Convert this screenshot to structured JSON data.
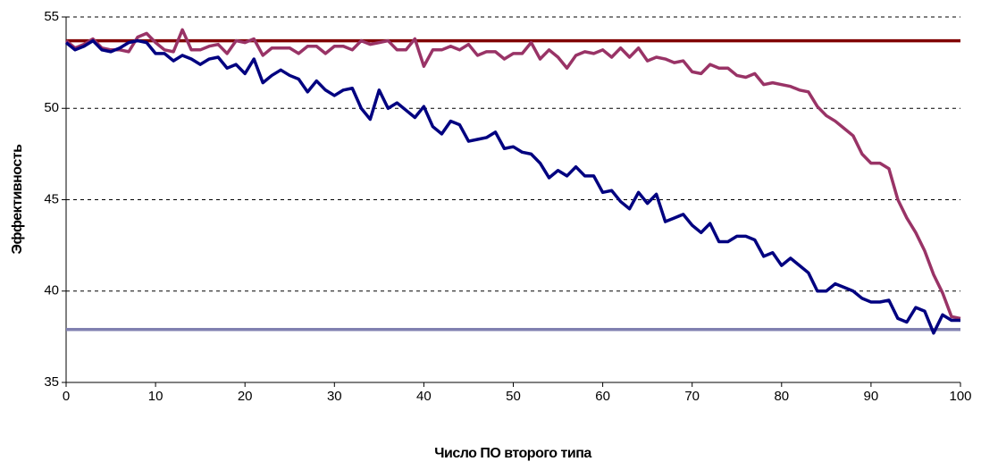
{
  "chart_data": {
    "type": "line",
    "x_label": "Число ПО второго типа",
    "y_label": "Эффективность",
    "x": [
      0,
      1,
      2,
      3,
      4,
      5,
      6,
      7,
      8,
      9,
      10,
      11,
      12,
      13,
      14,
      15,
      16,
      17,
      18,
      19,
      20,
      21,
      22,
      23,
      24,
      25,
      26,
      27,
      28,
      29,
      30,
      31,
      32,
      33,
      34,
      35,
      36,
      37,
      38,
      39,
      40,
      41,
      42,
      43,
      44,
      45,
      46,
      47,
      48,
      49,
      50,
      51,
      52,
      53,
      54,
      55,
      56,
      57,
      58,
      59,
      60,
      61,
      62,
      63,
      64,
      65,
      66,
      67,
      68,
      69,
      70,
      71,
      72,
      73,
      74,
      75,
      76,
      77,
      78,
      79,
      80,
      81,
      82,
      83,
      84,
      85,
      86,
      87,
      88,
      89,
      90,
      91,
      92,
      93,
      94,
      95,
      96,
      97,
      98,
      99,
      100
    ],
    "series": [
      {
        "x": [
          0,
          100
        ],
        "values": [
          53.7,
          53.7
        ],
        "color": "#800000"
      },
      {
        "x": [
          0,
          100
        ],
        "values": [
          37.9,
          37.9
        ],
        "color": "#8080b0"
      },
      {
        "color": "#993366",
        "values": [
          53.7,
          53.3,
          53.5,
          53.8,
          53.3,
          53.2,
          53.2,
          53.1,
          53.9,
          54.1,
          53.6,
          53.2,
          53.1,
          54.3,
          53.2,
          53.2,
          53.4,
          53.5,
          53.0,
          53.7,
          53.6,
          53.8,
          52.9,
          53.3,
          53.3,
          53.3,
          53.0,
          53.4,
          53.4,
          53.0,
          53.4,
          53.4,
          53.2,
          53.7,
          53.5,
          53.6,
          53.7,
          53.2,
          53.2,
          53.8,
          52.3,
          53.2,
          53.2,
          53.4,
          53.2,
          53.5,
          52.9,
          53.1,
          53.1,
          52.7,
          53.0,
          53.0,
          53.6,
          52.7,
          53.2,
          52.8,
          52.2,
          52.9,
          53.1,
          53.0,
          53.2,
          52.8,
          53.3,
          52.8,
          53.3,
          52.6,
          52.8,
          52.7,
          52.5,
          52.6,
          52.0,
          51.9,
          52.4,
          52.2,
          52.2,
          51.8,
          51.7,
          51.9,
          51.3,
          51.4,
          51.3,
          51.2,
          51.0,
          50.9,
          50.1,
          49.6,
          49.3,
          48.9,
          48.5,
          47.5,
          47.0,
          47.0,
          46.7,
          45.0,
          44.0,
          43.2,
          42.2,
          40.9,
          39.9,
          38.6,
          38.5
        ]
      },
      {
        "color": "#000080",
        "values": [
          53.6,
          53.2,
          53.4,
          53.7,
          53.2,
          53.1,
          53.3,
          53.6,
          53.7,
          53.6,
          53.0,
          53.0,
          52.6,
          52.9,
          52.7,
          52.4,
          52.7,
          52.8,
          52.2,
          52.4,
          51.9,
          52.7,
          51.4,
          51.8,
          52.1,
          51.8,
          51.6,
          50.9,
          51.5,
          51.0,
          50.7,
          51.0,
          51.1,
          50.0,
          49.4,
          51.0,
          50.0,
          50.3,
          49.9,
          49.5,
          50.1,
          49.0,
          48.6,
          49.3,
          49.1,
          48.2,
          48.3,
          48.4,
          48.7,
          47.8,
          47.9,
          47.6,
          47.5,
          47.0,
          46.2,
          46.6,
          46.3,
          46.8,
          46.3,
          46.3,
          45.4,
          45.5,
          44.9,
          44.5,
          45.4,
          44.8,
          45.3,
          43.8,
          44.0,
          44.2,
          43.6,
          43.2,
          43.7,
          42.7,
          42.7,
          43.0,
          43.0,
          42.8,
          41.9,
          42.1,
          41.4,
          41.8,
          41.4,
          41.0,
          40.0,
          40.0,
          40.4,
          40.2,
          40.0,
          39.6,
          39.4,
          39.4,
          39.5,
          38.5,
          38.3,
          39.1,
          38.9,
          37.7,
          38.7,
          38.4,
          38.4
        ]
      }
    ],
    "xlim": [
      0,
      100
    ],
    "xticks": [
      0,
      10,
      20,
      30,
      40,
      50,
      60,
      70,
      80,
      90,
      100
    ],
    "ylim": [
      35,
      55
    ],
    "yticks": [
      35,
      40,
      45,
      50,
      55
    ],
    "grid": true
  }
}
